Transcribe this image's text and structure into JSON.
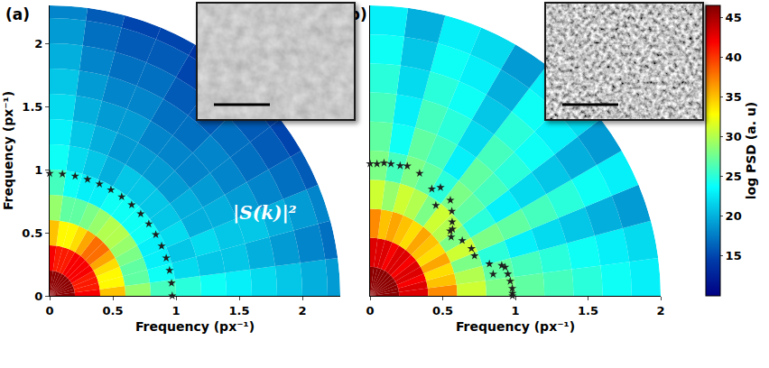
{
  "chart_data": [
    {
      "type": "polar_heatmap",
      "panel": "(a)",
      "x_label": "Frequency (px⁻¹)",
      "y_label": "Frequency (px⁻¹)",
      "xlim": [
        0,
        2.3
      ],
      "ylim": [
        0,
        2.3
      ],
      "xticks": [
        0,
        0.5,
        1,
        1.5,
        2
      ],
      "yticks": [
        0,
        0.5,
        1,
        1.5,
        2
      ],
      "heatmap": {
        "r_edges": [
          0,
          0.2,
          0.4,
          0.6,
          0.8,
          1,
          1.2,
          1.4,
          1.6,
          1.8,
          2,
          2.2,
          2.3
        ],
        "theta_edges": [
          0,
          7.5,
          15,
          22.5,
          30,
          37.5,
          45,
          52.5,
          60,
          67.5,
          75,
          82.5,
          90
        ],
        "cells": [
          [
            46,
            46,
            46,
            46,
            46,
            46,
            46,
            46,
            46,
            46,
            46,
            46
          ],
          [
            42,
            41,
            41,
            41,
            42,
            42,
            42,
            42,
            41,
            41,
            41,
            42
          ],
          [
            35,
            33,
            33,
            34,
            36,
            38,
            38,
            36,
            34,
            33,
            33,
            35
          ],
          [
            29,
            27,
            27,
            28,
            29,
            30,
            30,
            29,
            28,
            27,
            27,
            29
          ],
          [
            26,
            24,
            23,
            23,
            24,
            24,
            24,
            24,
            23,
            23,
            24,
            26
          ],
          [
            25,
            22,
            21,
            22,
            21,
            21,
            21,
            21,
            20,
            21,
            22,
            24
          ],
          [
            24,
            21,
            22,
            20,
            20,
            19,
            19,
            19,
            19,
            20,
            21,
            23
          ],
          [
            23,
            21,
            21,
            20,
            19,
            18,
            18,
            18,
            19,
            19,
            20,
            22
          ],
          [
            22,
            20,
            21,
            19,
            18,
            18,
            17,
            17,
            18,
            18,
            19,
            21
          ],
          [
            21,
            19,
            20,
            18,
            17,
            17,
            16,
            16,
            17,
            17,
            18,
            20
          ],
          [
            20,
            18,
            19,
            17,
            16,
            16,
            15,
            15,
            16,
            16,
            17,
            19
          ],
          [
            19,
            17,
            18,
            16,
            15,
            15,
            14,
            14,
            15,
            15,
            16,
            18
          ]
        ]
      },
      "series": [
        {
          "type": "scatter",
          "marker": "star",
          "color": "#1e1e1e",
          "r": [
            0.97,
            0.97,
            0.97,
            0.97,
            0.97,
            0.97,
            0.97,
            0.97,
            0.97,
            0.97,
            0.97,
            0.97,
            0.97,
            0.97,
            0.97,
            0.97
          ],
          "theta": [
            0,
            6,
            12,
            18,
            24,
            30,
            36,
            42,
            48,
            54,
            60,
            66,
            72,
            78,
            84,
            90
          ]
        }
      ],
      "annotations": [
        {
          "text": "|S(k)|²",
          "x": 1.7,
          "y": 0.66
        }
      ]
    },
    {
      "type": "polar_heatmap",
      "panel": "(b)",
      "x_label": "Frequency (px⁻¹)",
      "xlim": [
        0,
        2
      ],
      "ylim": [
        0,
        2
      ],
      "xticks": [
        0,
        0.5,
        1,
        1.5,
        2
      ],
      "tick_labels": "x",
      "heatmap": {
        "r_edges": [
          0,
          0.2,
          0.4,
          0.6,
          0.8,
          1,
          1.2,
          1.4,
          1.6,
          1.8,
          2
        ],
        "theta_edges": [
          0,
          7.5,
          15,
          22.5,
          30,
          37.5,
          45,
          52.5,
          60,
          67.5,
          75,
          82.5,
          90
        ],
        "cells": [
          [
            46,
            46,
            46,
            46,
            46,
            46,
            46,
            46,
            46,
            46,
            46,
            46
          ],
          [
            43,
            43,
            42,
            43,
            43,
            42,
            43,
            43,
            42,
            43,
            43,
            43
          ],
          [
            37,
            35,
            34,
            36,
            34,
            35,
            36,
            34,
            35,
            36,
            35,
            37
          ],
          [
            31,
            30,
            28,
            31,
            28,
            30,
            31,
            28,
            30,
            31,
            29,
            31
          ],
          [
            28,
            27,
            25,
            28,
            25,
            27,
            28,
            25,
            27,
            28,
            26,
            28
          ],
          [
            27,
            26,
            23,
            27,
            23,
            26,
            27,
            23,
            26,
            27,
            24,
            27
          ],
          [
            26,
            25,
            22,
            26,
            22,
            25,
            26,
            22,
            25,
            26,
            23,
            26
          ],
          [
            25,
            24,
            21,
            25,
            21,
            24,
            25,
            21,
            24,
            25,
            22,
            25
          ],
          [
            24,
            23,
            20,
            24,
            20,
            23,
            24,
            20,
            23,
            24,
            21,
            24
          ],
          [
            23,
            22,
            19,
            23,
            19,
            22,
            23,
            19,
            22,
            23,
            20,
            23
          ]
        ]
      },
      "series": [
        {
          "type": "scatter",
          "marker": "star",
          "color": "#1e1e1e",
          "r": [
            0.91,
            0.91,
            0.92,
            0.92,
            0.92,
            0.93,
            0.91,
            0.85,
            0.89,
            0.77,
            0.86,
            0.81,
            0.76,
            0.73,
            0.71,
            0.69,
            0.74,
            0.77,
            0.77,
            0.85,
            0.86,
            0.93,
            0.95,
            0.96,
            0.97,
            0.98,
            0.98,
            0.98
          ],
          "theta": [
            90,
            87,
            84,
            81,
            77,
            74,
            68,
            60,
            57,
            54,
            50,
            46,
            42,
            39,
            39,
            36,
            31,
            25,
            21,
            15,
            10,
            13,
            12,
            9,
            6,
            3,
            1,
            0
          ]
        }
      ]
    }
  ],
  "colorbar": {
    "title": "log PSD (a. u)",
    "range": [
      10,
      46.5
    ],
    "ticks": [
      15,
      20,
      25,
      30,
      35,
      40,
      45
    ]
  }
}
